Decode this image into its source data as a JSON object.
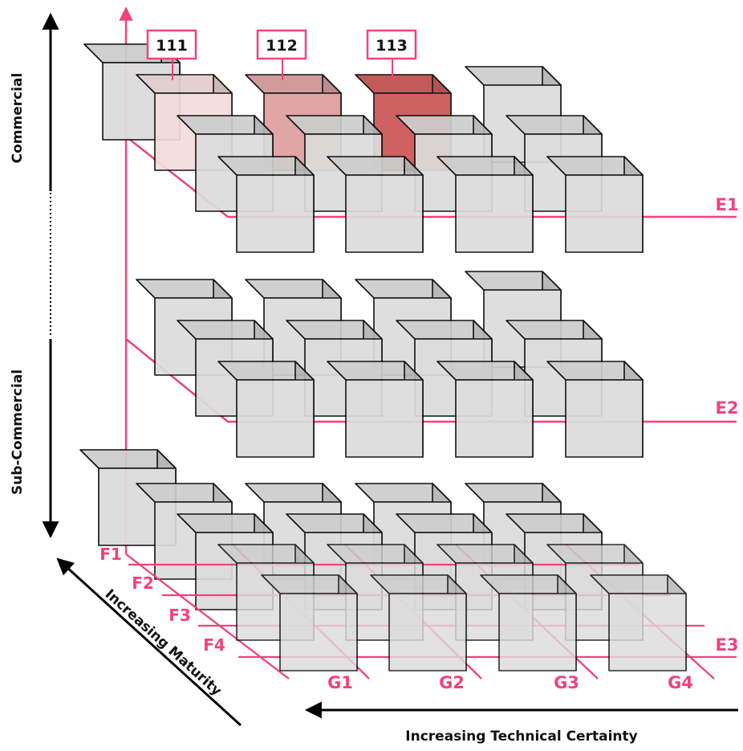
{
  "axis_labels": {
    "vertical_top": "Commercial",
    "vertical_bottom": "Sub-Commercial",
    "diagonal": "Increasing Maturity",
    "horizontal": "Increasing Technical Certainty"
  },
  "layer_labels": [
    "E1",
    "E2",
    "E3"
  ],
  "row_labels": [
    "F1",
    "F2",
    "F3",
    "F4"
  ],
  "column_labels": [
    "G1",
    "G2",
    "G3",
    "G4"
  ],
  "callouts": [
    {
      "label": "111",
      "fill": "#f3dcdc"
    },
    {
      "label": "112",
      "fill": "#df9e9e"
    },
    {
      "label": "113",
      "fill": "#cd5454"
    }
  ],
  "colors": {
    "accent": "#f0437a",
    "cube_fill": "#dcdcdc",
    "cube_stroke": "#000000",
    "text": "#111111"
  }
}
